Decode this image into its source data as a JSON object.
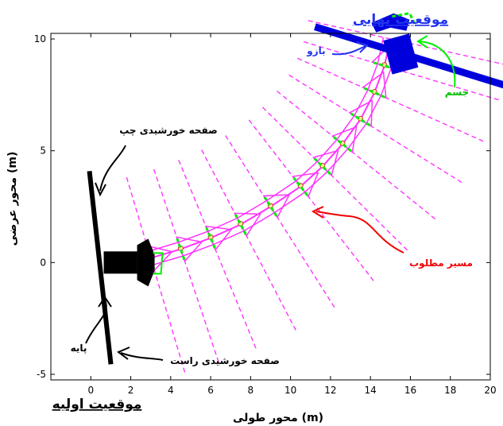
{
  "chart_data": {
    "type": "line",
    "xlabel": "محور طولی (m)",
    "ylabel": "محور عرضی (m)",
    "xlim": [
      -2,
      20
    ],
    "ylim": [
      -5.25,
      10.25
    ],
    "xticks": [
      0,
      2,
      4,
      6,
      8,
      10,
      12,
      14,
      16,
      18,
      20
    ],
    "xtick_labels": [
      "0",
      "2",
      "4",
      "6",
      "8",
      "10",
      "12",
      "14",
      "16",
      "18",
      "20"
    ],
    "yticks": [
      -5,
      0,
      5,
      10
    ],
    "ytick_labels": [
      "-5",
      "0",
      "5",
      "10"
    ],
    "grid": false,
    "colors": {
      "path": "#ff33ff",
      "frames": "#ff33ff",
      "panels": "#ff33ff",
      "body_links": "#00ee00",
      "initial_robot": "#000000",
      "final_robot": "#0000dd",
      "desired_path_label": "#ee0000",
      "body_label": "#00bb00",
      "arm_label": "#2233ee"
    },
    "path": {
      "x": [
        3.0,
        4.5,
        6.0,
        7.5,
        9.0,
        10.5,
        11.6,
        12.6,
        13.5,
        14.2,
        14.7,
        15.0
      ],
      "y": [
        0.2,
        0.6,
        1.1,
        1.7,
        2.5,
        3.4,
        4.3,
        5.3,
        6.4,
        7.6,
        8.8,
        10.0
      ]
    },
    "initial_robot": {
      "x": 2.0,
      "y": 0.0,
      "angle_deg": 0
    },
    "final_robot": {
      "x": 15.4,
      "y": 9.3,
      "angle_deg": -15
    },
    "annotations": {
      "initial_position": "موقعیت اولیه",
      "final_position": "موقعیت نهایی",
      "arm": "بازو",
      "body": "جسم",
      "left_solar_panel": "صفحه خورشیدی چپ",
      "right_solar_panel": "صفحه خورشیدی راست",
      "base": "پایه",
      "desired_path": "مسیر مطلوب"
    }
  }
}
